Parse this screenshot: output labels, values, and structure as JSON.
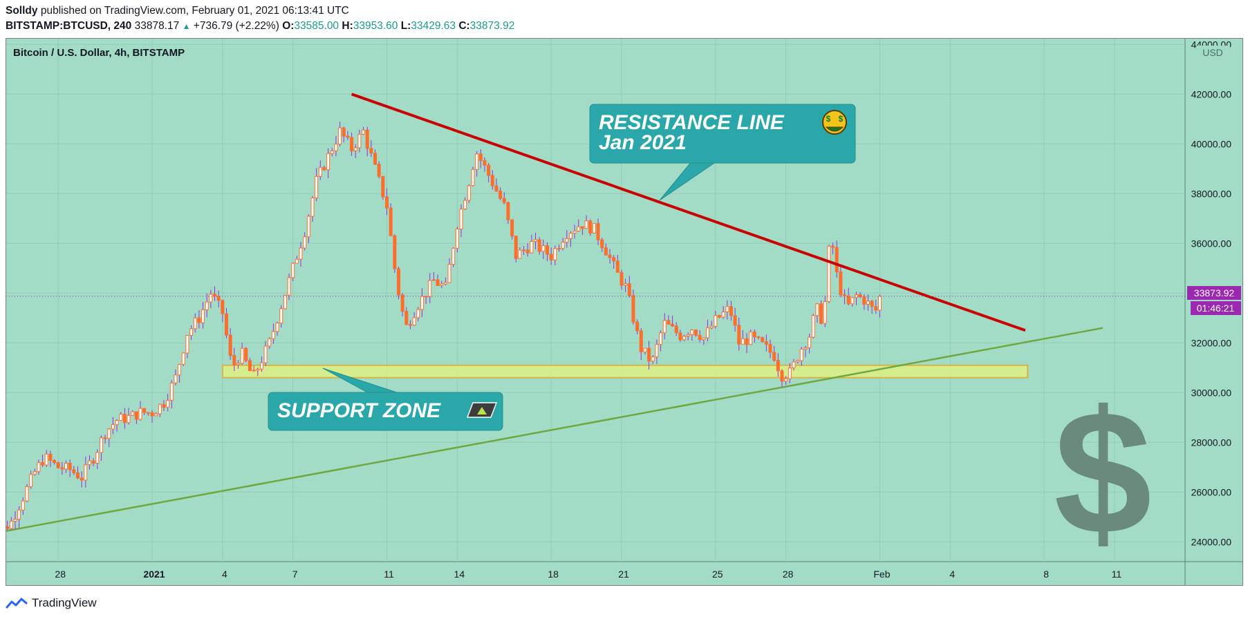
{
  "header": {
    "author": "Solldy",
    "published": "published on TradingView.com, February 01, 2021 06:13:41 UTC",
    "symbol": "BITSTAMP:BTCUSD, 240",
    "last": "33878.17",
    "change_arrow": "▲",
    "change": "+736.79 (+2.22%)",
    "o_label": "O:",
    "o_value": "33585.00",
    "h_label": "H:",
    "h_value": "33953.60",
    "l_label": "L:",
    "l_value": "33429.63",
    "c_label": "C:",
    "c_value": "33873.92"
  },
  "chart_title": "Bitcoin / U.S. Dollar, 4h, BITSTAMP",
  "currency": "USD",
  "price_tag": "33873.92",
  "countdown_tag": "01:46:21",
  "annotations": {
    "resistance_line1": "RESISTANCE LINE",
    "resistance_line2": "Jan 2021",
    "support": "SUPPORT ZONE",
    "resistance_emoji": "money-mouth-face-icon",
    "support_emoji": "up-arrow-icon"
  },
  "footer": {
    "brand": "TradingView"
  },
  "colors": {
    "background": "#a2dcc6",
    "candle_body": "#ff6e2b",
    "wick": "#a12bd6",
    "resistance_line": "#c80000",
    "trend_line": "#6fa83e",
    "support_zone": "#e5f37a",
    "callout": "#2aa7a8",
    "price_tag": "#9c27b0"
  },
  "chart_data": {
    "type": "candlestick",
    "title": "Bitcoin / U.S. Dollar, 4h, BITSTAMP",
    "ylabel": "USD",
    "ylim": [
      23000,
      44000
    ],
    "y_ticks": [
      "24000.00",
      "26000.00",
      "28000.00",
      "30000.00",
      "32000.00",
      "34000.00",
      "36000.00",
      "38000.00",
      "40000.00",
      "42000.00",
      "44000.00"
    ],
    "x_ticks": [
      {
        "label": "28",
        "day": -4
      },
      {
        "label": "2021",
        "day": 0
      },
      {
        "label": "4",
        "day": 3
      },
      {
        "label": "7",
        "day": 6
      },
      {
        "label": "11",
        "day": 10
      },
      {
        "label": "14",
        "day": 13
      },
      {
        "label": "18",
        "day": 17
      },
      {
        "label": "21",
        "day": 20
      },
      {
        "label": "25",
        "day": 24
      },
      {
        "label": "28",
        "day": 27
      },
      {
        "label": "Feb",
        "day": 31
      },
      {
        "label": "4",
        "day": 34
      },
      {
        "label": "8",
        "day": 38
      },
      {
        "label": "11",
        "day": 41
      }
    ],
    "price_anchors": [
      [
        -7,
        23600
      ],
      [
        -6.5,
        24400
      ],
      [
        -6,
        24800
      ],
      [
        -5.5,
        25800
      ],
      [
        -5,
        26800
      ],
      [
        -4.6,
        27400
      ],
      [
        -4,
        27000
      ],
      [
        -3.5,
        26900
      ],
      [
        -3,
        26600
      ],
      [
        -2.5,
        27400
      ],
      [
        -2,
        28400
      ],
      [
        -1.5,
        28900
      ],
      [
        -1,
        29000
      ],
      [
        -0.5,
        29200
      ],
      [
        0,
        29200
      ],
      [
        0.5,
        29600
      ],
      [
        1,
        30600
      ],
      [
        1.5,
        32400
      ],
      [
        2,
        33000
      ],
      [
        2.5,
        34000
      ],
      [
        3,
        33200
      ],
      [
        3.4,
        31000
      ],
      [
        3.8,
        31600
      ],
      [
        4.3,
        30600
      ],
      [
        5,
        32000
      ],
      [
        5.5,
        33500
      ],
      [
        6,
        35000
      ],
      [
        6.5,
        36500
      ],
      [
        7,
        38500
      ],
      [
        7.5,
        39500
      ],
      [
        8,
        40500
      ],
      [
        8.5,
        39800
      ],
      [
        9,
        40500
      ],
      [
        9.5,
        39000
      ],
      [
        10,
        37500
      ],
      [
        10.4,
        34500
      ],
      [
        10.8,
        32600
      ],
      [
        11.3,
        33500
      ],
      [
        12,
        34500
      ],
      [
        12.5,
        34200
      ],
      [
        13,
        36800
      ],
      [
        13.5,
        38500
      ],
      [
        13.8,
        39700
      ],
      [
        14.2,
        39000
      ],
      [
        15,
        37500
      ],
      [
        15.5,
        35500
      ],
      [
        16.2,
        36000
      ],
      [
        17,
        35500
      ],
      [
        17.6,
        36400
      ],
      [
        18.3,
        36800
      ],
      [
        18.8,
        36600
      ],
      [
        19.3,
        35800
      ],
      [
        19.8,
        34800
      ],
      [
        20.2,
        34200
      ],
      [
        20.8,
        31800
      ],
      [
        21.3,
        31200
      ],
      [
        21.8,
        32800
      ],
      [
        22.5,
        32300
      ],
      [
        23,
        32600
      ],
      [
        23.5,
        32200
      ],
      [
        24,
        32900
      ],
      [
        24.6,
        33400
      ],
      [
        25,
        32000
      ],
      [
        25.5,
        32200
      ],
      [
        26,
        31900
      ],
      [
        26.5,
        31500
      ],
      [
        26.8,
        30700
      ],
      [
        27.2,
        30800
      ],
      [
        27.6,
        31700
      ],
      [
        28,
        32300
      ],
      [
        28.3,
        33400
      ],
      [
        28.6,
        32800
      ],
      [
        28.9,
        36500
      ],
      [
        29.2,
        34500
      ],
      [
        29.6,
        33400
      ],
      [
        30,
        33900
      ],
      [
        30.4,
        33700
      ],
      [
        30.8,
        33200
      ],
      [
        31,
        33878
      ]
    ],
    "resistance_line": {
      "x": [
        8.5,
        37.2
      ],
      "y": [
        42000,
        32500
      ]
    },
    "trend_line": {
      "x": [
        -7,
        40.5
      ],
      "y": [
        24300,
        32600
      ]
    },
    "support_zone": {
      "x": [
        3,
        37.3
      ],
      "y": [
        30600,
        31100
      ]
    },
    "current_price": 33873.92
  }
}
